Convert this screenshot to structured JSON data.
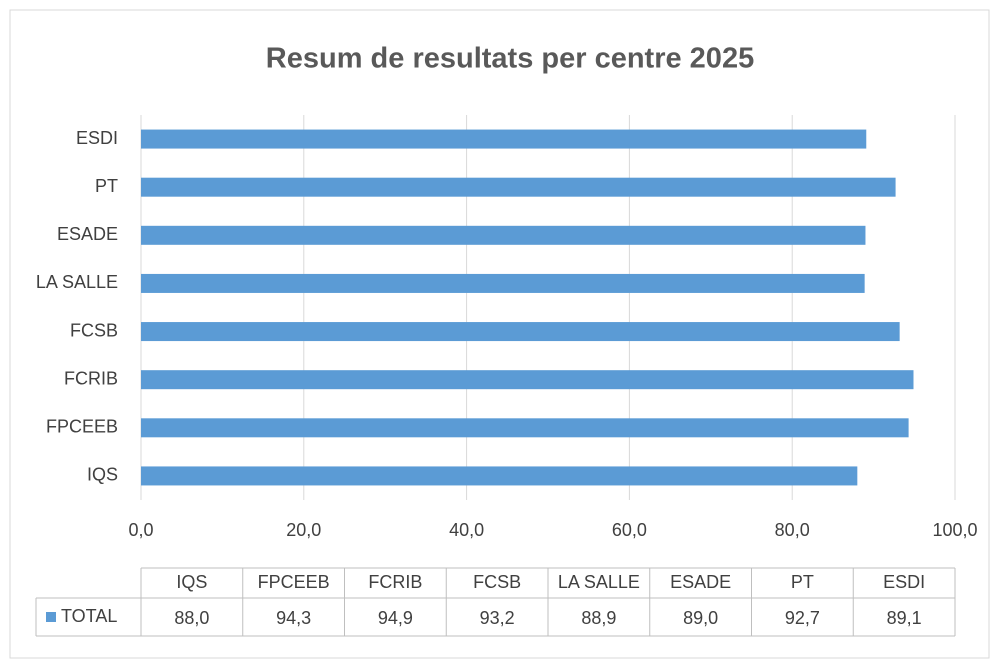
{
  "chart_data": {
    "type": "bar",
    "orientation": "horizontal",
    "title": "Resum de resultats per centre 2025",
    "categories": [
      "IQS",
      "FPCEEB",
      "FCRIB",
      "FCSB",
      "LA SALLE",
      "ESADE",
      "PT",
      "ESDI"
    ],
    "series": [
      {
        "name": "TOTAL",
        "color": "#5b9bd5",
        "values": [
          88.0,
          94.3,
          94.9,
          93.2,
          88.9,
          89.0,
          92.7,
          89.1
        ],
        "value_labels": [
          "88,0",
          "94,3",
          "94,9",
          "93,2",
          "88,9",
          "89,0",
          "92,7",
          "89,1"
        ]
      }
    ],
    "xlim": [
      0,
      100
    ],
    "xticks": [
      {
        "value": 0,
        "label": "0,0"
      },
      {
        "value": 20,
        "label": "20,0"
      },
      {
        "value": 40,
        "label": "40,0"
      },
      {
        "value": 60,
        "label": "60,0"
      },
      {
        "value": 80,
        "label": "80,0"
      },
      {
        "value": 100,
        "label": "100,0"
      }
    ],
    "grid": true,
    "data_table": true
  }
}
